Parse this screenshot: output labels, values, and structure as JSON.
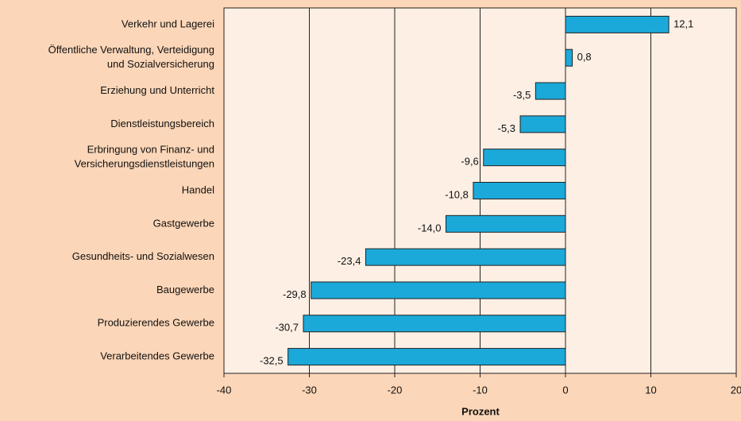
{
  "chart_data": {
    "type": "bar",
    "orientation": "horizontal",
    "categories": [
      [
        "Verkehr und Lagerei"
      ],
      [
        "Öffentliche Verwaltung, Verteidigung",
        "und Sozialversicherung"
      ],
      [
        "Erziehung und Unterricht"
      ],
      [
        "Dienstleistungsbereich"
      ],
      [
        "Erbringung von Finanz- und",
        "Versicherungsdienstleistungen"
      ],
      [
        "Handel"
      ],
      [
        "Gastgewerbe"
      ],
      [
        "Gesundheits- und Sozialwesen"
      ],
      [
        "Baugewerbe"
      ],
      [
        "Produzierendes Gewerbe"
      ],
      [
        "Verarbeitendes Gewerbe"
      ]
    ],
    "values": [
      12.1,
      0.8,
      -3.5,
      -5.3,
      -9.6,
      -10.8,
      -14.0,
      -23.4,
      -29.8,
      -30.7,
      -32.5
    ],
    "value_labels": [
      "12,1",
      "0,8",
      "-3,5",
      "-5,3",
      "-9,6",
      "-10,8",
      "-14,0",
      "-23,4",
      "-29,8",
      "-30,7",
      "-32,5"
    ],
    "color": "#1ba9d9",
    "xlabel": "Prozent",
    "xlim": [
      -40,
      20
    ],
    "xticks": [
      -40,
      -30,
      -20,
      -10,
      0,
      10,
      20
    ],
    "grid": true
  }
}
